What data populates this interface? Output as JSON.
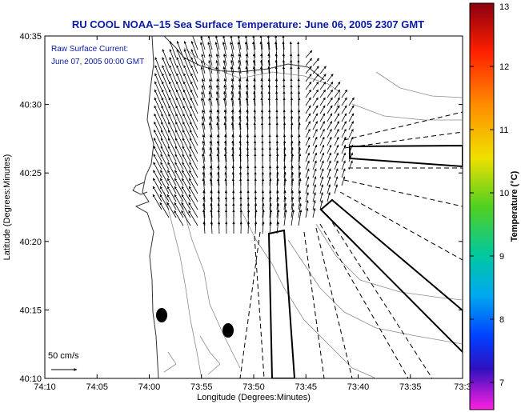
{
  "title": "RU COOL  NOAA–15  Sea Surface Temperature:  June 06, 2005 2307 GMT",
  "annotation": {
    "line1": "Raw Surface Current:",
    "line2": "June 07, 2005 00:00 GMT"
  },
  "scale": {
    "label": "50 cm/s"
  },
  "xlabel": "Longitude (Degrees:Minutes)",
  "ylabel": "Latitude (Degrees:Minutes)",
  "x_ticks": [
    "74:10",
    "74:05",
    "74:00",
    "73:55",
    "73:50",
    "73:45",
    "73:40",
    "73:35",
    "73:3"
  ],
  "y_ticks": [
    "40:35",
    "40:30",
    "40:25",
    "40:20",
    "40:15",
    "40:10"
  ],
  "colorbar": {
    "label": "Temperature (°C)",
    "ticks": [
      "13",
      "12",
      "11",
      "10",
      "9",
      "8",
      "7"
    ],
    "colors": [
      "#b00010",
      "#ff2000",
      "#ff8c00",
      "#f0e000",
      "#60d020",
      "#00c890",
      "#00b0f0",
      "#1060ff",
      "#0000c0",
      "#8030d0",
      "#ff20e0"
    ]
  },
  "map_features": {
    "current_vector_color": "#000000",
    "bathymetry_contour_color": "#8c8c8c",
    "coastline_color": "#333333",
    "markers": [
      "station-marker-1",
      "station-marker-2"
    ]
  }
}
